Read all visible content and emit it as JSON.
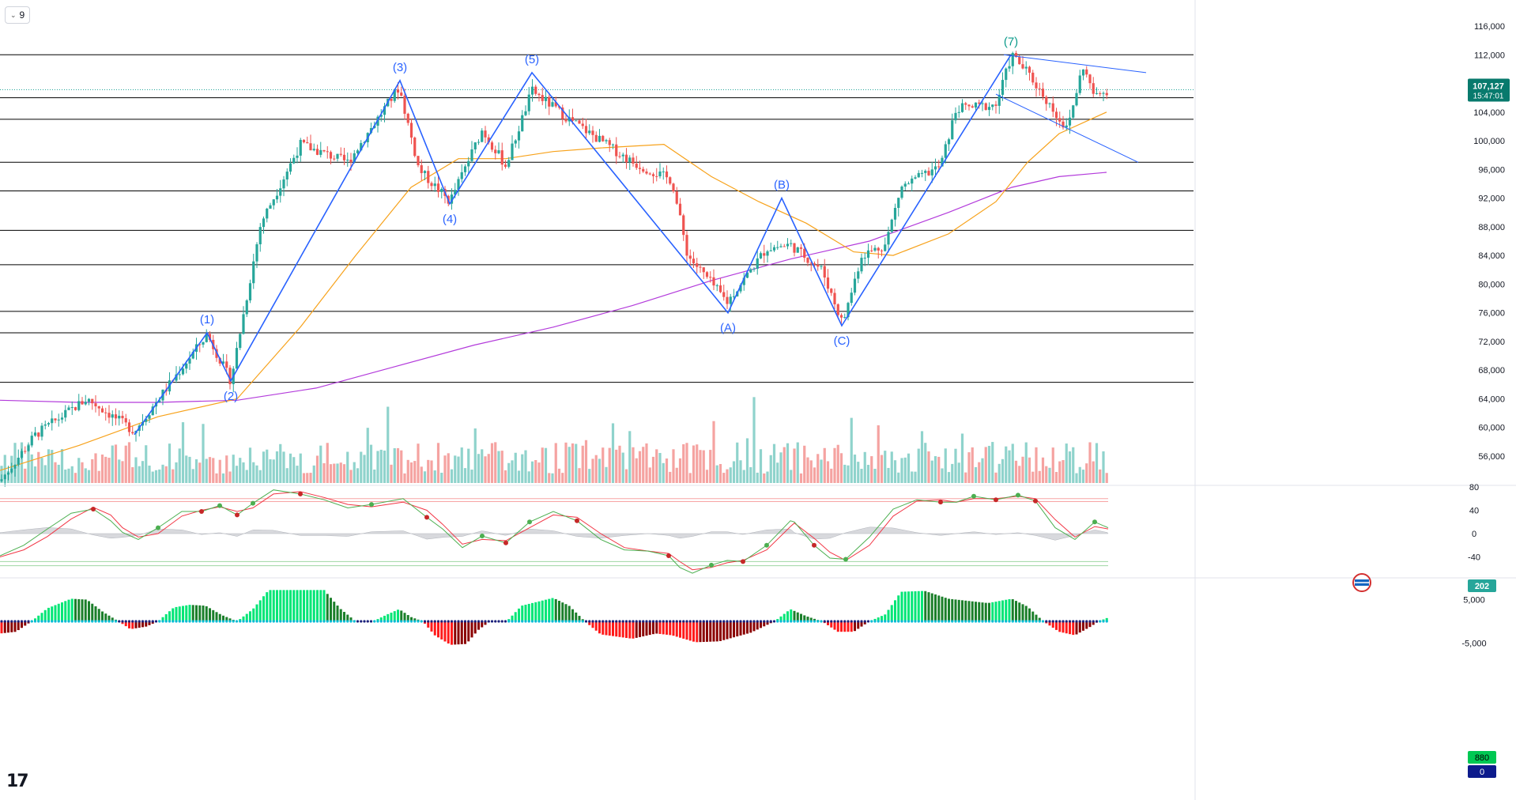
{
  "toolbar": {
    "interval_label": "9"
  },
  "branding": {
    "logo_text": "17"
  },
  "colors": {
    "up": "#26a69a",
    "down": "#ef5350",
    "wave": "#2962ff",
    "ma_fast": "#f7a21b",
    "ma_slow": "#b33bdb",
    "hline": "#000000",
    "osc_green": "#4caf50",
    "osc_red": "#f23645",
    "hist_up_bright": "#00e676",
    "hist_up_dark": "#1b7f2a",
    "hist_down_bright": "#ff1a1a",
    "hist_down_dark": "#8b0000",
    "last_price_bg": "#087a6d"
  },
  "chart_data": [
    {
      "type": "candlestick",
      "y_axis": {
        "min": 52000,
        "max": 118000,
        "ticks": [
          "116,000",
          "112,000",
          "108,000",
          "104,000",
          "100,000",
          "96,000",
          "92,000",
          "88,000",
          "84,000",
          "80,000",
          "76,000",
          "72,000",
          "68,000",
          "64,000",
          "60,000",
          "56,000"
        ]
      },
      "last_price": {
        "value": 107127,
        "label": "107,127",
        "countdown": "15:47:01"
      },
      "horizontal_levels": [
        112000,
        106000,
        103000,
        97000,
        93000,
        87500,
        82700,
        76200,
        73200,
        66300
      ],
      "price_path": [
        [
          0,
          52500
        ],
        [
          45,
          59000
        ],
        [
          110,
          64000
        ],
        [
          170,
          59500
        ],
        [
          262,
          73000
        ],
        [
          292,
          66500
        ],
        [
          330,
          88500
        ],
        [
          380,
          99500
        ],
        [
          440,
          97000
        ],
        [
          505,
          107500
        ],
        [
          530,
          96000
        ],
        [
          569,
          91500
        ],
        [
          610,
          101500
        ],
        [
          640,
          96500
        ],
        [
          673,
          107000
        ],
        [
          720,
          103000
        ],
        [
          800,
          97000
        ],
        [
          850,
          94500
        ],
        [
          870,
          84000
        ],
        [
          920,
          77500
        ],
        [
          970,
          85000
        ],
        [
          1000,
          85500
        ],
        [
          1040,
          82000
        ],
        [
          1066,
          74500
        ],
        [
          1090,
          84000
        ],
        [
          1120,
          85500
        ],
        [
          1140,
          93500
        ],
        [
          1190,
          96500
        ],
        [
          1210,
          104500
        ],
        [
          1260,
          105000
        ],
        [
          1280,
          112000
        ],
        [
          1300,
          109500
        ],
        [
          1350,
          101500
        ],
        [
          1370,
          110500
        ],
        [
          1385,
          106000
        ],
        [
          1402,
          107127
        ]
      ],
      "elliott_waves": [
        {
          "label": "(1)",
          "x": 262,
          "value": 73200
        },
        {
          "label": "(2)",
          "x": 292,
          "value": 66500
        },
        {
          "label": "(3)",
          "x": 506,
          "value": 108400
        },
        {
          "label": "(4)",
          "x": 569,
          "value": 91200
        },
        {
          "label": "(5)",
          "x": 673,
          "value": 109500
        },
        {
          "label": "(A)",
          "x": 921,
          "value": 76000
        },
        {
          "label": "(B)",
          "x": 989,
          "value": 92000
        },
        {
          "label": "(C)",
          "x": 1065,
          "value": 74200
        },
        {
          "label": "(7)",
          "x": 1279,
          "value": 112000
        }
      ],
      "moving_average_fast": [
        [
          0,
          54000
        ],
        [
          100,
          57500
        ],
        [
          200,
          61500
        ],
        [
          300,
          64000
        ],
        [
          380,
          74000
        ],
        [
          450,
          84000
        ],
        [
          520,
          93500
        ],
        [
          580,
          97500
        ],
        [
          640,
          97500
        ],
        [
          700,
          98500
        ],
        [
          760,
          99000
        ],
        [
          840,
          99500
        ],
        [
          900,
          95000
        ],
        [
          960,
          91500
        ],
        [
          1020,
          88500
        ],
        [
          1080,
          84500
        ],
        [
          1130,
          84000
        ],
        [
          1200,
          87000
        ],
        [
          1260,
          91500
        ],
        [
          1300,
          97000
        ],
        [
          1340,
          101000
        ],
        [
          1400,
          104000
        ]
      ],
      "moving_average_slow": [
        [
          0,
          63800
        ],
        [
          100,
          63500
        ],
        [
          200,
          63500
        ],
        [
          300,
          63800
        ],
        [
          400,
          65500
        ],
        [
          500,
          68500
        ],
        [
          600,
          71500
        ],
        [
          700,
          74000
        ],
        [
          800,
          77000
        ],
        [
          900,
          80500
        ],
        [
          1000,
          83500
        ],
        [
          1100,
          86000
        ],
        [
          1200,
          90000
        ],
        [
          1280,
          93500
        ],
        [
          1340,
          95000
        ],
        [
          1400,
          95600
        ]
      ],
      "trend_lines": [
        {
          "from": [
            1270,
            112000
          ],
          "to": [
            1450,
            109500
          ]
        },
        {
          "from": [
            1260,
            106500
          ],
          "to": [
            1440,
            97000
          ]
        }
      ]
    },
    {
      "type": "bar",
      "name": "volume",
      "last_value_label": "202"
    },
    {
      "type": "line",
      "name": "oscillator",
      "y_axis": {
        "min": -60,
        "max": 80,
        "ticks": [
          "80",
          "40",
          "0",
          "-40"
        ]
      },
      "levels": [
        60,
        55,
        -48,
        -55
      ],
      "fast": [
        [
          0,
          -38
        ],
        [
          30,
          -20
        ],
        [
          60,
          8
        ],
        [
          90,
          35
        ],
        [
          118,
          42
        ],
        [
          140,
          22
        ],
        [
          155,
          2
        ],
        [
          175,
          -10
        ],
        [
          200,
          10
        ],
        [
          230,
          38
        ],
        [
          255,
          38
        ],
        [
          278,
          48
        ],
        [
          300,
          32
        ],
        [
          320,
          52
        ],
        [
          346,
          75
        ],
        [
          380,
          68
        ],
        [
          410,
          58
        ],
        [
          440,
          44
        ],
        [
          470,
          50
        ],
        [
          510,
          60
        ],
        [
          540,
          28
        ],
        [
          560,
          8
        ],
        [
          585,
          -24
        ],
        [
          610,
          -4
        ],
        [
          640,
          -16
        ],
        [
          670,
          20
        ],
        [
          700,
          38
        ],
        [
          730,
          22
        ],
        [
          760,
          -10
        ],
        [
          790,
          -28
        ],
        [
          820,
          -30
        ],
        [
          846,
          -38
        ],
        [
          860,
          -58
        ],
        [
          876,
          -68
        ],
        [
          900,
          -54
        ],
        [
          920,
          -46
        ],
        [
          940,
          -48
        ],
        [
          970,
          -20
        ],
        [
          1000,
          22
        ],
        [
          1005,
          20
        ],
        [
          1030,
          -20
        ],
        [
          1050,
          -42
        ],
        [
          1070,
          -44
        ],
        [
          1100,
          -6
        ],
        [
          1130,
          42
        ],
        [
          1160,
          58
        ],
        [
          1190,
          54
        ],
        [
          1210,
          54
        ],
        [
          1232,
          64
        ],
        [
          1260,
          58
        ],
        [
          1288,
          66
        ],
        [
          1310,
          56
        ],
        [
          1335,
          10
        ],
        [
          1360,
          -10
        ],
        [
          1385,
          20
        ],
        [
          1402,
          10
        ]
      ],
      "slow": [
        [
          0,
          -40
        ],
        [
          30,
          -28
        ],
        [
          60,
          -5
        ],
        [
          90,
          25
        ],
        [
          118,
          45
        ],
        [
          140,
          32
        ],
        [
          155,
          10
        ],
        [
          175,
          -6
        ],
        [
          200,
          0
        ],
        [
          230,
          30
        ],
        [
          255,
          40
        ],
        [
          278,
          46
        ],
        [
          300,
          38
        ],
        [
          320,
          44
        ],
        [
          346,
          68
        ],
        [
          380,
          72
        ],
        [
          410,
          62
        ],
        [
          440,
          50
        ],
        [
          470,
          46
        ],
        [
          510,
          54
        ],
        [
          540,
          40
        ],
        [
          560,
          16
        ],
        [
          585,
          -18
        ],
        [
          610,
          -10
        ],
        [
          640,
          -12
        ],
        [
          670,
          10
        ],
        [
          700,
          32
        ],
        [
          730,
          28
        ],
        [
          760,
          0
        ],
        [
          790,
          -24
        ],
        [
          820,
          -30
        ],
        [
          846,
          -34
        ],
        [
          860,
          -48
        ],
        [
          876,
          -62
        ],
        [
          900,
          -58
        ],
        [
          920,
          -50
        ],
        [
          940,
          -46
        ],
        [
          970,
          -28
        ],
        [
          1000,
          12
        ],
        [
          1005,
          18
        ],
        [
          1030,
          -8
        ],
        [
          1050,
          -32
        ],
        [
          1070,
          -46
        ],
        [
          1100,
          -20
        ],
        [
          1130,
          30
        ],
        [
          1160,
          56
        ],
        [
          1190,
          58
        ],
        [
          1210,
          54
        ],
        [
          1232,
          60
        ],
        [
          1260,
          60
        ],
        [
          1288,
          64
        ],
        [
          1310,
          60
        ],
        [
          1335,
          24
        ],
        [
          1360,
          -6
        ],
        [
          1385,
          12
        ],
        [
          1402,
          8
        ]
      ]
    },
    {
      "type": "bar",
      "name": "histogram",
      "y_axis": {
        "ticks": [
          "5,000",
          "-5,000"
        ]
      },
      "last_value_label": "880",
      "zero_label": "0",
      "envelope": [
        [
          0,
          -2800
        ],
        [
          20,
          -2400
        ],
        [
          40,
          0
        ],
        [
          60,
          3000
        ],
        [
          90,
          5200
        ],
        [
          110,
          5000
        ],
        [
          130,
          2200
        ],
        [
          150,
          0
        ],
        [
          165,
          -1800
        ],
        [
          185,
          -1200
        ],
        [
          200,
          0
        ],
        [
          220,
          3200
        ],
        [
          240,
          3800
        ],
        [
          260,
          3600
        ],
        [
          280,
          1500
        ],
        [
          300,
          0
        ],
        [
          320,
          2800
        ],
        [
          340,
          7200
        ],
        [
          410,
          7200
        ],
        [
          430,
          3000
        ],
        [
          450,
          0
        ],
        [
          470,
          -200
        ],
        [
          490,
          1600
        ],
        [
          505,
          2800
        ],
        [
          520,
          1000
        ],
        [
          535,
          0
        ],
        [
          550,
          -3200
        ],
        [
          570,
          -5400
        ],
        [
          590,
          -5200
        ],
        [
          605,
          -2000
        ],
        [
          620,
          0
        ],
        [
          640,
          -200
        ],
        [
          660,
          3600
        ],
        [
          700,
          5400
        ],
        [
          720,
          3600
        ],
        [
          740,
          0
        ],
        [
          760,
          -3000
        ],
        [
          800,
          -4000
        ],
        [
          830,
          -2800
        ],
        [
          850,
          -3200
        ],
        [
          880,
          -4800
        ],
        [
          910,
          -4600
        ],
        [
          950,
          -2600
        ],
        [
          980,
          0
        ],
        [
          1000,
          2800
        ],
        [
          1020,
          1200
        ],
        [
          1040,
          0
        ],
        [
          1060,
          -2400
        ],
        [
          1080,
          -2400
        ],
        [
          1100,
          0
        ],
        [
          1120,
          1600
        ],
        [
          1140,
          6800
        ],
        [
          1170,
          7000
        ],
        [
          1200,
          5200
        ],
        [
          1250,
          4200
        ],
        [
          1280,
          5200
        ],
        [
          1300,
          3400
        ],
        [
          1320,
          0
        ],
        [
          1340,
          -2400
        ],
        [
          1360,
          -3200
        ],
        [
          1380,
          -1200
        ],
        [
          1390,
          0
        ],
        [
          1402,
          880
        ]
      ]
    }
  ]
}
